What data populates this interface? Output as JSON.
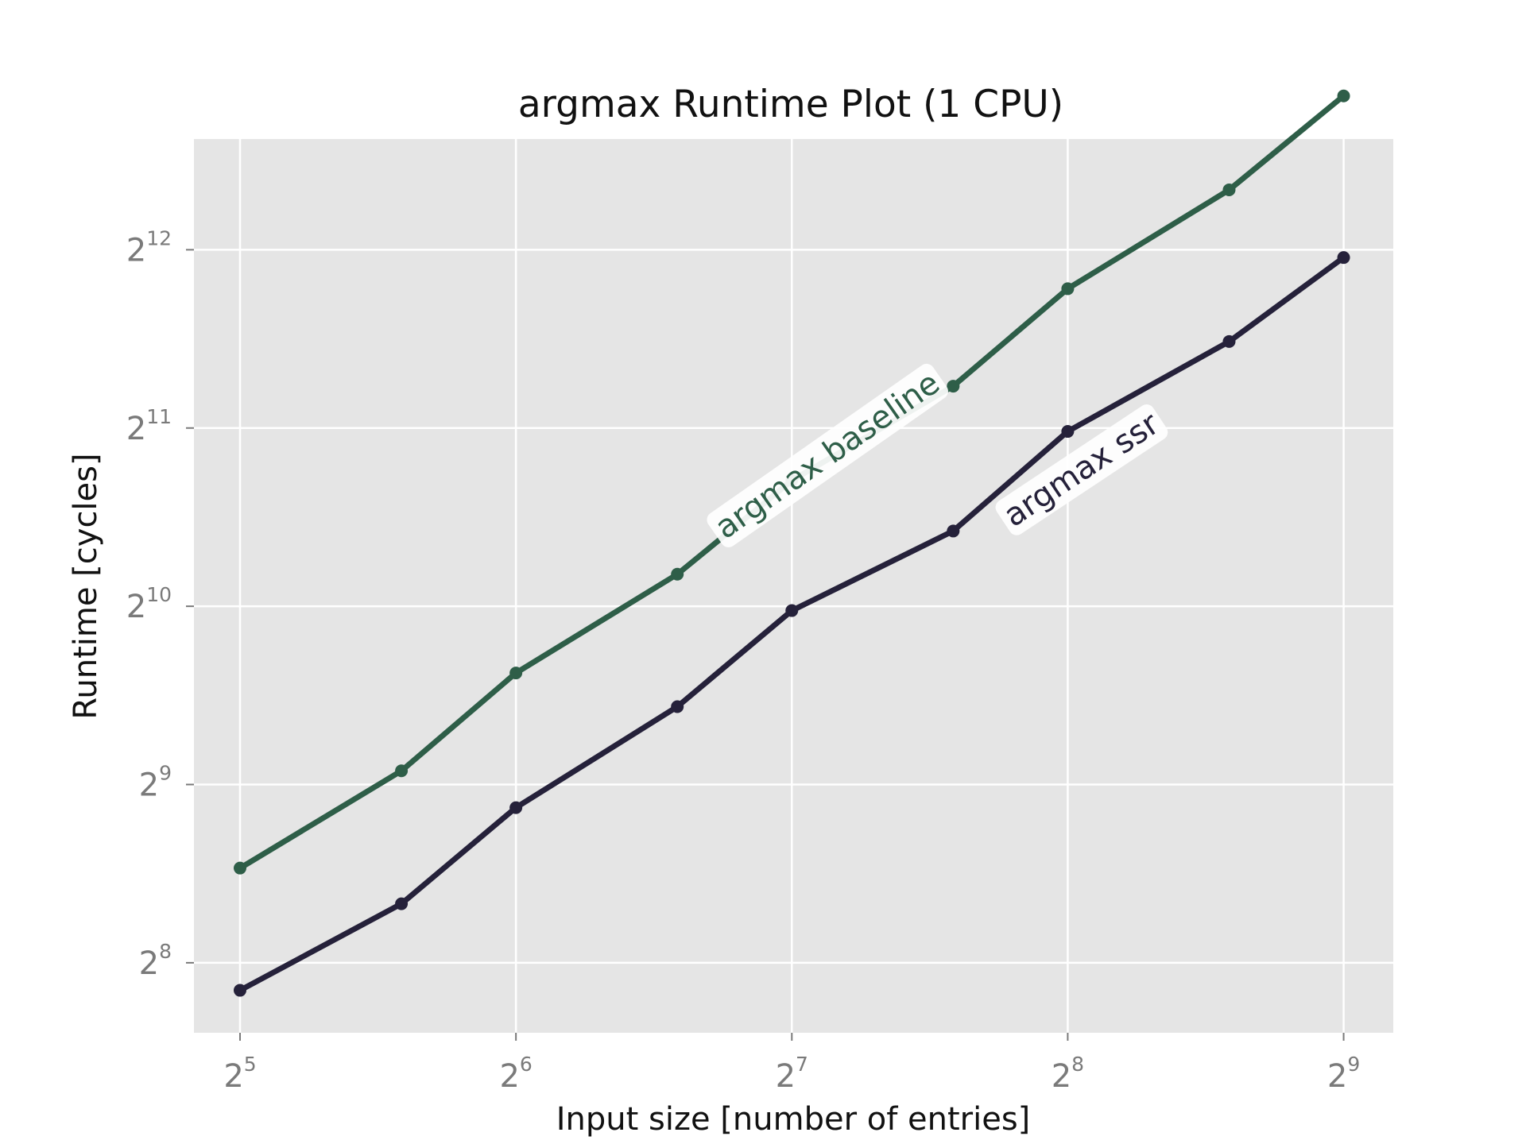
{
  "chart_data": {
    "type": "line",
    "title": "argmax Runtime Plot (1 CPU)",
    "xlabel": "Input size [number of entries]",
    "ylabel": "Runtime [cycles]",
    "x_scale": "log2",
    "y_scale": "log2",
    "xlim": [
      28.5,
      580
    ],
    "ylim": [
      195,
      6300
    ],
    "grid": true,
    "background": "#e5e5e5",
    "x_ticks": [
      {
        "base": "2",
        "exp": "5",
        "value": 32
      },
      {
        "base": "2",
        "exp": "6",
        "value": 64
      },
      {
        "base": "2",
        "exp": "7",
        "value": 128
      },
      {
        "base": "2",
        "exp": "8",
        "value": 256
      },
      {
        "base": "2",
        "exp": "9",
        "value": 512
      }
    ],
    "y_ticks": [
      {
        "base": "2",
        "exp": "8",
        "value": 256
      },
      {
        "base": "2",
        "exp": "9",
        "value": 512
      },
      {
        "base": "2",
        "exp": "10",
        "value": 1024
      },
      {
        "base": "2",
        "exp": "11",
        "value": 2048
      },
      {
        "base": "2",
        "exp": "12",
        "value": 4096
      }
    ],
    "series": [
      {
        "name": "argmax baseline",
        "color": "#2e5e48",
        "points": [
          {
            "x": 32,
            "y": 370
          },
          {
            "x": 48,
            "y": 540
          },
          {
            "x": 64,
            "y": 790
          },
          {
            "x": 96,
            "y": 1160
          },
          {
            "x": 128,
            "y": 1670
          },
          {
            "x": 192,
            "y": 2410
          },
          {
            "x": 256,
            "y": 3520
          },
          {
            "x": 384,
            "y": 5170
          },
          {
            "x": 512,
            "y": 7450
          }
        ]
      },
      {
        "name": "argmax ssr",
        "color": "#25213a",
        "points": [
          {
            "x": 32,
            "y": 230
          },
          {
            "x": 48,
            "y": 322
          },
          {
            "x": 64,
            "y": 468
          },
          {
            "x": 96,
            "y": 693
          },
          {
            "x": 128,
            "y": 1007
          },
          {
            "x": 192,
            "y": 1372
          },
          {
            "x": 256,
            "y": 2021
          },
          {
            "x": 384,
            "y": 2867
          },
          {
            "x": 512,
            "y": 3974
          }
        ]
      }
    ]
  }
}
